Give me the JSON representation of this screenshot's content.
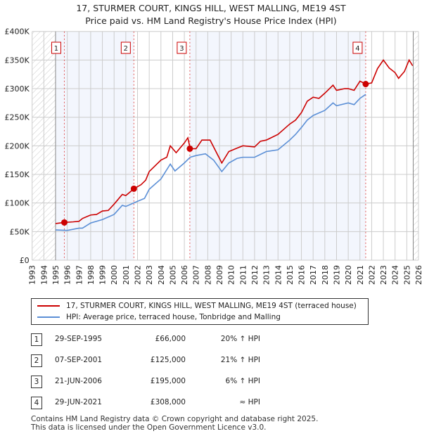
{
  "title": "17, STURMER COURT, KINGS HILL, WEST MALLING, ME19 4ST",
  "subtitle": "Price paid vs. HM Land Registry's House Price Index (HPI)",
  "chart_data": {
    "type": "line",
    "xlim": [
      1993,
      2026
    ],
    "ylim": [
      0,
      400000
    ],
    "y_ticks": [
      {
        "v": 0,
        "l": "£0"
      },
      {
        "v": 50000,
        "l": "£50K"
      },
      {
        "v": 100000,
        "l": "£100K"
      },
      {
        "v": 150000,
        "l": "£150K"
      },
      {
        "v": 200000,
        "l": "£200K"
      },
      {
        "v": 250000,
        "l": "£250K"
      },
      {
        "v": 300000,
        "l": "£300K"
      },
      {
        "v": 350000,
        "l": "£350K"
      },
      {
        "v": 400000,
        "l": "£400K"
      }
    ],
    "x_ticks": [
      "1993",
      "1994",
      "1995",
      "1996",
      "1997",
      "1998",
      "1999",
      "2000",
      "2001",
      "2002",
      "2003",
      "2004",
      "2005",
      "2006",
      "2007",
      "2008",
      "2009",
      "2010",
      "2011",
      "2012",
      "2013",
      "2014",
      "2015",
      "2016",
      "2017",
      "2018",
      "2019",
      "2020",
      "2021",
      "2022",
      "2023",
      "2024",
      "2025",
      "2026"
    ],
    "series": [
      {
        "name": "17, STURMER COURT, KINGS HILL, WEST MALLING, ME19 4ST (terraced house)",
        "color": "#cc0000",
        "x": [
          1995,
          1995.75,
          1996.5,
          1997,
          1997.3,
          1998,
          1998.5,
          1999,
          1999.5,
          2000,
          2000.7,
          2001,
          2001.7,
          2002.3,
          2002.7,
          2003,
          2003.5,
          2004,
          2004.5,
          2004.8,
          2005.3,
          2006,
          2006.3,
          2006.5,
          2007,
          2007.5,
          2008.2,
          2008.7,
          2009.2,
          2009.8,
          2010.5,
          2011,
          2012,
          2012.5,
          2013,
          2014,
          2015,
          2015.5,
          2016,
          2016.5,
          2017,
          2017.5,
          2018,
          2018.7,
          2019,
          2019.7,
          2020,
          2020.5,
          2021,
          2021.3,
          2021.5,
          2022,
          2022.5,
          2023,
          2023.5,
          2024,
          2024.3,
          2024.8,
          2025.2,
          2025.5
        ],
        "y": [
          64000,
          66000,
          67000,
          68000,
          73000,
          79000,
          80000,
          86000,
          87000,
          98000,
          115000,
          113000,
          125000,
          132000,
          140000,
          155000,
          165000,
          175000,
          180000,
          200000,
          188000,
          205000,
          214000,
          195000,
          195000,
          210000,
          210000,
          190000,
          170000,
          190000,
          196000,
          200000,
          198000,
          208000,
          210000,
          220000,
          238000,
          245000,
          258000,
          278000,
          285000,
          283000,
          292000,
          306000,
          297000,
          300000,
          300000,
          297000,
          313000,
          310000,
          308000,
          310000,
          335000,
          350000,
          336000,
          328000,
          318000,
          330000,
          350000,
          340000
        ]
      },
      {
        "name": "HPI: Average price, terraced house, Tonbridge and Malling",
        "color": "#5b8fd6",
        "x": [
          1995,
          1996,
          1997,
          1997.3,
          1998,
          1999,
          2000,
          2000.7,
          2001,
          2002,
          2002.6,
          2003,
          2004,
          2004.8,
          2005.2,
          2006,
          2006.5,
          2007,
          2007.8,
          2008.5,
          2009.2,
          2009.8,
          2010.5,
          2011,
          2012,
          2013,
          2014,
          2015,
          2015.5,
          2016,
          2016.5,
          2017,
          2018,
          2018.7,
          2019,
          2020,
          2020.5,
          2021,
          2021.5
        ],
        "y": [
          53000,
          52000,
          56000,
          56000,
          65000,
          71000,
          80000,
          96000,
          94000,
          103000,
          108000,
          124000,
          142000,
          168000,
          156000,
          170000,
          180000,
          183000,
          186000,
          175000,
          155000,
          170000,
          178000,
          180000,
          180000,
          190000,
          193000,
          210000,
          220000,
          232000,
          245000,
          253000,
          262000,
          275000,
          270000,
          275000,
          272000,
          283000,
          290000
        ]
      }
    ],
    "sales": [
      {
        "n": "1",
        "x": 1995.75,
        "y": 66000
      },
      {
        "n": "2",
        "x": 2001.69,
        "y": 125000
      },
      {
        "n": "3",
        "x": 2006.47,
        "y": 195000
      },
      {
        "n": "4",
        "x": 2021.49,
        "y": 308000
      }
    ]
  },
  "legend": {
    "property": "17, STURMER COURT, KINGS HILL, WEST MALLING, ME19 4ST (terraced house)",
    "hpi": "HPI: Average price, terraced house, Tonbridge and Malling"
  },
  "table": [
    {
      "n": "1",
      "date": "29-SEP-1995",
      "price": "£66,000",
      "hpi": "20% ↑ HPI"
    },
    {
      "n": "2",
      "date": "07-SEP-2001",
      "price": "£125,000",
      "hpi": "21% ↑ HPI"
    },
    {
      "n": "3",
      "date": "21-JUN-2006",
      "price": "£195,000",
      "hpi": "6% ↑ HPI"
    },
    {
      "n": "4",
      "date": "29-JUN-2021",
      "price": "£308,000",
      "hpi": "≈ HPI"
    }
  ],
  "footer": [
    "Contains HM Land Registry data © Crown copyright and database right 2025.",
    "This data is licensed under the Open Government Licence v3.0."
  ]
}
